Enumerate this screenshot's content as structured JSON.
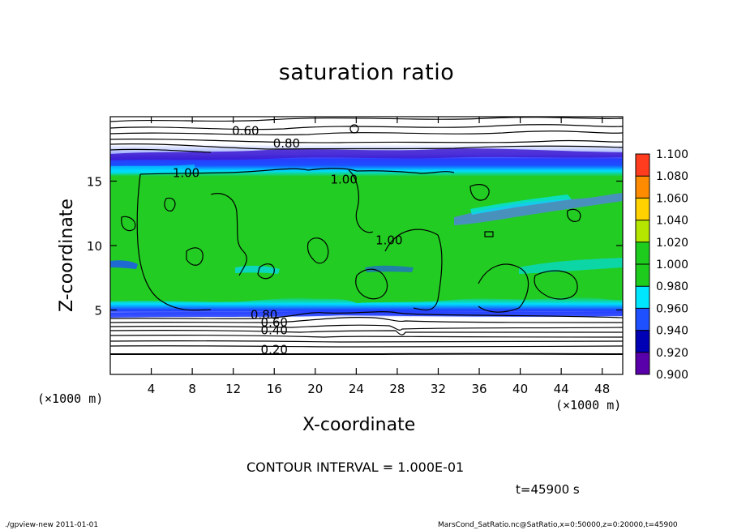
{
  "title": "saturation ratio",
  "xlabel": "X-coordinate",
  "ylabel": "Z-coordinate",
  "x_unit_left": "(×1000 m)",
  "x_unit_right": "(×1000 m)",
  "contour_interval": "CONTOUR INTERVAL = 1.000E-01",
  "time_label": "t=45900 s",
  "footer_left": "./gpview-new   2011-01-01",
  "footer_right": "MarsCond_SatRatio.nc@SatRatio,x=0:50000,z=0:20000,t=45900",
  "colors": {
    "saturated_fill": "#22cc22",
    "low_band_purple": "#5000a0",
    "blue": "#1e3cff",
    "cyan": "#00dcff",
    "background": "#ffffff"
  },
  "chart_data": {
    "type": "heatmap",
    "title": "saturation ratio",
    "xlabel": "X-coordinate",
    "ylabel": "Z-coordinate",
    "xlim": [
      0,
      50
    ],
    "ylim": [
      0,
      20
    ],
    "x_ticks": [
      4,
      8,
      12,
      16,
      20,
      24,
      28,
      32,
      36,
      40,
      44,
      48
    ],
    "y_ticks": [
      5,
      10,
      15
    ],
    "colorbar": {
      "levels": [
        "0.900",
        "0.920",
        "0.940",
        "0.960",
        "0.980",
        "1.000",
        "1.020",
        "1.040",
        "1.060",
        "1.080",
        "1.100"
      ],
      "colors": [
        "#5a00aa",
        "#0000b4",
        "#1e50ff",
        "#00e6ff",
        "#1ecc1e",
        "#1ecc1e",
        "#b4e600",
        "#ffd200",
        "#ff8c00",
        "#ff3c1e",
        "#ff7a8c"
      ]
    },
    "contour_labels": [
      {
        "text": "0.60",
        "x": 13.2,
        "z": 18.6
      },
      {
        "text": "0.80",
        "x": 17.2,
        "z": 17.6
      },
      {
        "text": "1.00",
        "x": 7.4,
        "z": 15.3
      },
      {
        "text": "1.00",
        "x": 22.8,
        "z": 14.8
      },
      {
        "text": "1.00",
        "x": 27.2,
        "z": 10.1
      },
      {
        "text": "0.80",
        "x": 15.0,
        "z": 4.3
      },
      {
        "text": "0.60",
        "x": 16.0,
        "z": 3.7
      },
      {
        "text": "0.40",
        "x": 16.0,
        "z": 3.1
      },
      {
        "text": "0.20",
        "x": 16.0,
        "z": 1.6
      }
    ],
    "contour_interval": 0.1,
    "time_seconds": 45900
  }
}
